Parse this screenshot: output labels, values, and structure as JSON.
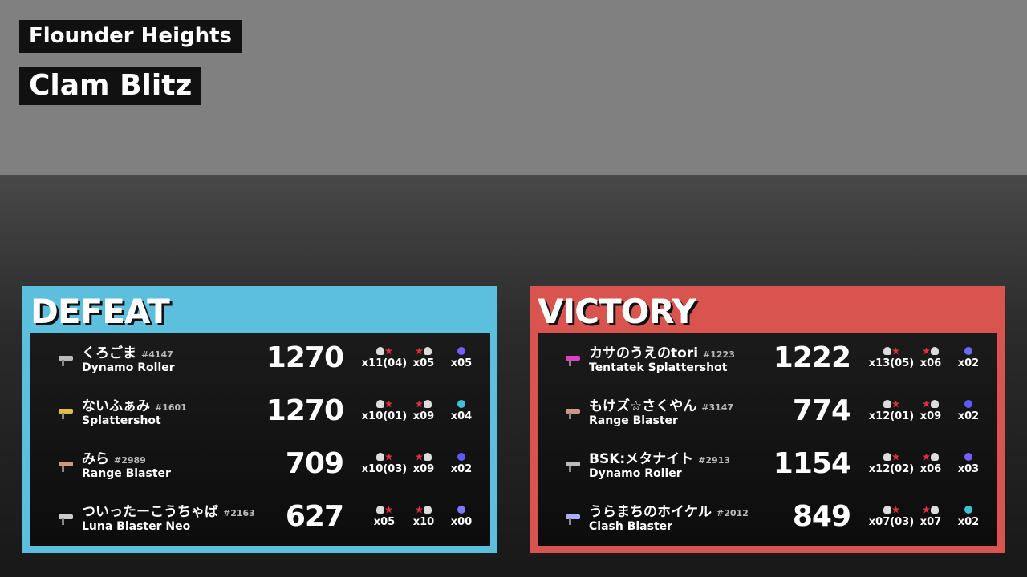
{
  "header": {
    "stage": "Flounder Heights",
    "mode": "Clam Blitz"
  },
  "colors": {
    "defeat": "#5bbfdd",
    "victory": "#d9534f",
    "highlight_arrow": "#e6ff00"
  },
  "teams": [
    {
      "result": "DEFEAT",
      "players": [
        {
          "name": "くろごま",
          "tag": "#4147",
          "weapon": "Dynamo Roller",
          "score": "1270",
          "kills": "x11(04)",
          "deaths": "x05",
          "specials": "x05",
          "weapon_color": "#bbbbbb",
          "special_color": "#7a5cff"
        },
        {
          "name": "ないふぁみ",
          "tag": "#1601",
          "weapon": "Splattershot",
          "score": "1270",
          "kills": "x10(01)",
          "deaths": "x09",
          "specials": "x04",
          "weapon_color": "#e0c040",
          "special_color": "#40c0d0",
          "current_player": true
        },
        {
          "name": "みら",
          "tag": "#2989",
          "weapon": "Range Blaster",
          "score": "709",
          "kills": "x10(03)",
          "deaths": "x09",
          "specials": "x02",
          "weapon_color": "#cc9988",
          "special_color": "#5a5aff"
        },
        {
          "name": "ついったーこうちゃば",
          "tag": "#2163",
          "weapon": "Luna Blaster Neo",
          "score": "627",
          "kills": "x05",
          "deaths": "x10",
          "specials": "x00",
          "weapon_color": "#cccccc",
          "special_color": "#7a7aff"
        }
      ]
    },
    {
      "result": "VICTORY",
      "players": [
        {
          "name": "カサのうえのtori",
          "tag": "#1223",
          "weapon": "Tentatek Splattershot",
          "score": "1222",
          "kills": "x13(05)",
          "deaths": "x06",
          "specials": "x02",
          "weapon_color": "#e040c0",
          "special_color": "#6a6aff"
        },
        {
          "name": "もけズ☆さくやん",
          "tag": "#3147",
          "weapon": "Range Blaster",
          "score": "774",
          "kills": "x12(01)",
          "deaths": "x09",
          "specials": "x02",
          "weapon_color": "#cc9988",
          "special_color": "#5a5aff"
        },
        {
          "name": "BSK:メタナイト",
          "tag": "#2913",
          "weapon": "Dynamo Roller",
          "score": "1154",
          "kills": "x12(02)",
          "deaths": "x06",
          "specials": "x03",
          "weapon_color": "#bbbbbb",
          "special_color": "#7a5cff"
        },
        {
          "name": "うらまちのホイケル",
          "tag": "#2012",
          "weapon": "Clash Blaster",
          "score": "849",
          "kills": "x07(03)",
          "deaths": "x07",
          "specials": "x02",
          "weapon_color": "#aab0ff",
          "special_color": "#40c0d0"
        }
      ]
    }
  ]
}
